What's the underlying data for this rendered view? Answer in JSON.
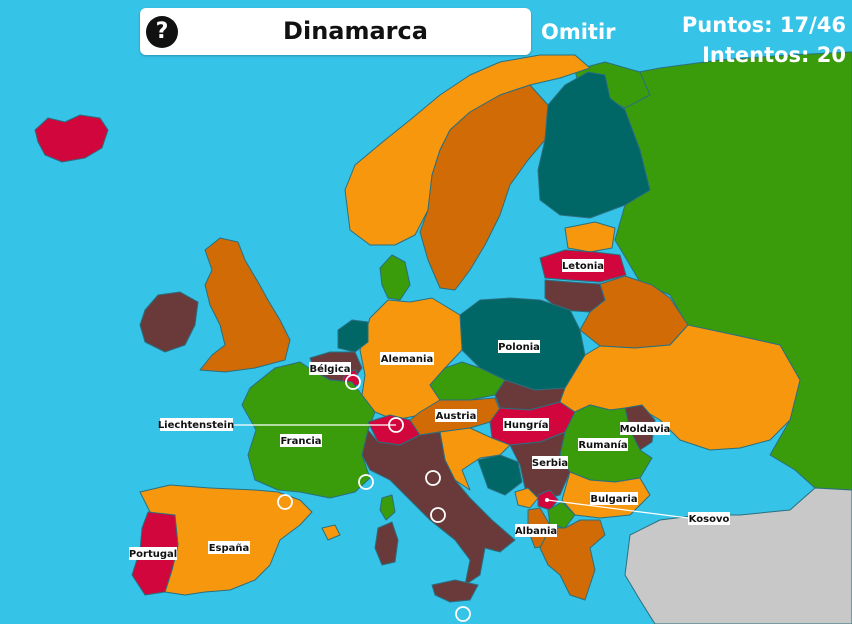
{
  "question": {
    "prompt": "Dinamarca",
    "help_glyph": "?"
  },
  "controls": {
    "skip_label": "Omitir"
  },
  "score": {
    "points": "Puntos: 17/46",
    "attempts": "Intentos: 20"
  },
  "labels": {
    "letonia": "Letonia",
    "polonia": "Polonia",
    "alemania": "Alemania",
    "belgica": "Bélgica",
    "liechtenstein": "Liechtenstein",
    "francia": "Francia",
    "austria": "Austria",
    "hungria": "Hungría",
    "rumania": "Rumanía",
    "moldavia": "Moldavia",
    "serbia": "Serbia",
    "bulgaria": "Bulgaria",
    "kosovo": "Kosovo",
    "albania": "Albania",
    "espana": "España",
    "portugal": "Portugal"
  },
  "colors": {
    "sea": "#36C3E8",
    "orange": "#F7970E",
    "dark_orange": "#D06B06",
    "teal": "#006666",
    "green": "#3A9C0B",
    "crimson": "#D1063D",
    "brown": "#6A3A3A",
    "grey": "#C8C8C8",
    "leader_line": "#FFFFFF"
  }
}
